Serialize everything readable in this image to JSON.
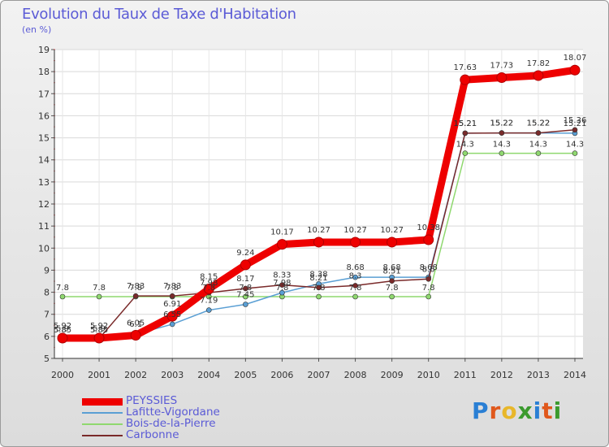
{
  "title": "Evolution du Taux de Taxe d'Habitation",
  "subtitle": "(en %)",
  "logo": {
    "text": "Proxiti",
    "letters": [
      "P",
      "r",
      "o",
      "x",
      "i",
      "t",
      "i"
    ],
    "colors": [
      "#2a7fd4",
      "#e0581c",
      "#e8b72a",
      "#3b9a2e",
      "#2a7fd4",
      "#e0581c",
      "#3b9a2e"
    ]
  },
  "chart_data": {
    "type": "line",
    "x": [
      "2000",
      "2001",
      "2002",
      "2003",
      "2004",
      "2005",
      "2006",
      "2007",
      "2008",
      "2009",
      "2010",
      "2011",
      "2012",
      "2013",
      "2014"
    ],
    "ylim": [
      5,
      19
    ],
    "yticks": [
      "5",
      "6",
      "7",
      "8",
      "9",
      "10",
      "11",
      "12",
      "13",
      "14",
      "15",
      "16",
      "17",
      "18",
      "19"
    ],
    "grid": true,
    "legend_position": "bottom-left",
    "series": [
      {
        "name": "PEYSSIES",
        "color": "#ee0000",
        "values": [
          5.92,
          5.92,
          6.05,
          6.91,
          8.15,
          9.24,
          10.17,
          10.27,
          10.27,
          10.27,
          10.38,
          17.63,
          17.73,
          17.82,
          18.07
        ],
        "labels": [
          "5.92",
          "5.92",
          "6.05",
          "6.91",
          "8.15",
          "9.24",
          "10.17",
          "10.27",
          "10.27",
          "10.27",
          "10.38",
          "17.63",
          "17.73",
          "17.82",
          "18.07"
        ]
      },
      {
        "name": "Lafitte-Vigordane",
        "color": "#5a9fd4",
        "values": [
          5.85,
          5.85,
          6.1,
          6.55,
          7.19,
          7.45,
          7.98,
          8.38,
          8.68,
          8.68,
          8.68,
          15.21,
          15.22,
          15.22,
          15.21
        ],
        "labels": [
          "5.85",
          "5.85",
          "6.1",
          "6.55",
          "7.19",
          "7.45",
          "7.98",
          "8.38",
          "8.68",
          "8.68",
          "8.68",
          "15.21",
          "15.22",
          "15.22",
          "15.21"
        ]
      },
      {
        "name": "Bois-de-la-Pierre",
        "color": "#8fd86f",
        "values": [
          7.8,
          7.8,
          7.8,
          7.8,
          7.8,
          7.8,
          7.8,
          7.8,
          7.8,
          7.8,
          7.8,
          14.3,
          14.3,
          14.3,
          14.3
        ],
        "labels": [
          "7.8",
          "7.8",
          "7.8",
          "7.8",
          "7.8",
          "7.8",
          "7.8",
          "7.8",
          "7.8",
          "7.8",
          "7.8",
          "14.3",
          "14.3",
          "14.3",
          "14.3"
        ]
      },
      {
        "name": "Carbonne",
        "color": "#7a2a2a",
        "values": [
          5.9,
          5.9,
          7.83,
          7.83,
          7.98,
          8.17,
          8.33,
          8.21,
          8.3,
          8.51,
          8.6,
          15.21,
          15.22,
          15.22,
          15.36
        ],
        "labels": [
          "5.9",
          "5.9",
          "7.83",
          "7.83",
          "7.98",
          "8.17",
          "8.33",
          "8.21",
          "8.3",
          "8.51",
          "8.6",
          "15.21",
          "15.22",
          "15.22",
          "15.36"
        ]
      }
    ]
  }
}
